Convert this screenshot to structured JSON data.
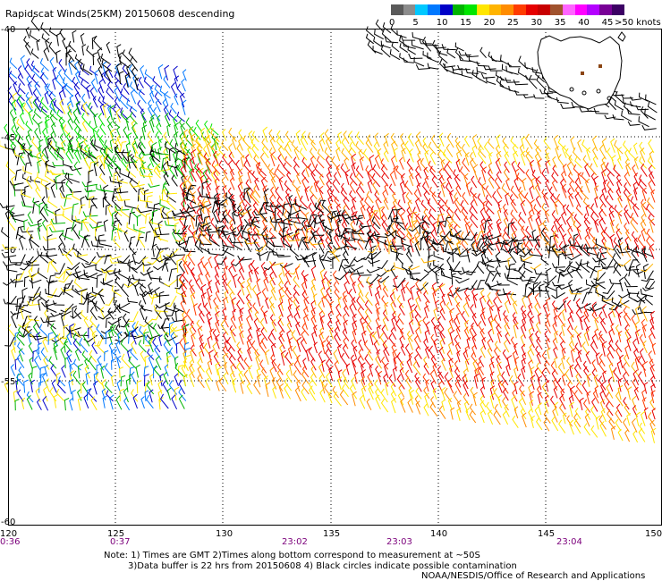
{
  "title": "Rapidscat Winds(25KM) 20150608 descending",
  "legend": {
    "colors": [
      "#5a5a5a",
      "#8c8c8c",
      "#00c8ff",
      "#0078ff",
      "#0000c8",
      "#00b400",
      "#00e600",
      "#ffe600",
      "#ffb400",
      "#ff8c00",
      "#ff3c00",
      "#e60000",
      "#c80000",
      "#a0522d",
      "#ff64ff",
      "#ff00ff",
      "#b400ff",
      "#780096",
      "#3c0064"
    ],
    "labels": [
      "0",
      "5",
      "10",
      "15",
      "20",
      "25",
      "30",
      "35",
      "40",
      "45",
      ">50 knots"
    ]
  },
  "axes": {
    "lat_labels": [
      "-40",
      "-45",
      "-50",
      "-55",
      "-60"
    ],
    "lon_labels": [
      "120",
      "125",
      "130",
      "135",
      "140",
      "145",
      "150"
    ]
  },
  "times": [
    "0:36",
    "0:37",
    "23:02",
    "23:03",
    "23:04"
  ],
  "notes": [
    "Note: 1) Times are GMT 2)Times along bottom correspond to measurement at ~50S",
    "3)Data buffer is 22 hrs from 20150608 4) Black circles indicate possible contamination",
    "NOAA/NESDIS/Office of Research and Applications"
  ]
}
